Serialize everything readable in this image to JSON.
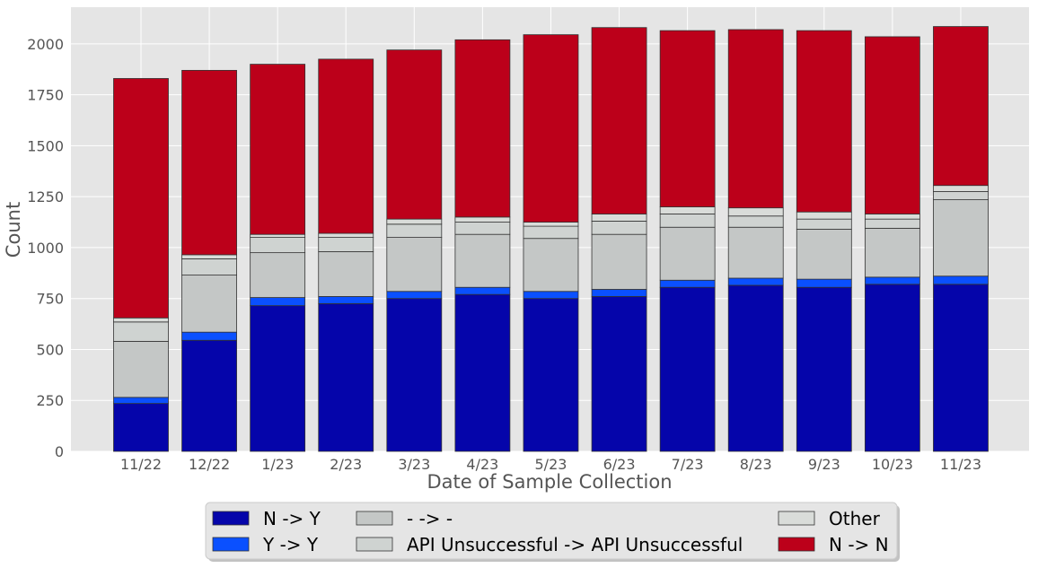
{
  "chart_data": {
    "type": "bar",
    "stacked": true,
    "title": "",
    "xlabel": "Date of Sample Collection",
    "ylabel": "Count",
    "ylim": [
      0,
      2180
    ],
    "yticks": [
      0,
      250,
      500,
      750,
      1000,
      1250,
      1500,
      1750,
      2000
    ],
    "grid": true,
    "legend_position": "bottom-center",
    "categories": [
      "11/22",
      "12/22",
      "1/23",
      "2/23",
      "3/23",
      "4/23",
      "5/23",
      "6/23",
      "7/23",
      "8/23",
      "9/23",
      "10/23",
      "11/23"
    ],
    "series": [
      {
        "name": "N -> Y",
        "color": "#0505aa",
        "values": [
          235,
          545,
          715,
          725,
          750,
          770,
          750,
          760,
          805,
          815,
          805,
          820,
          820
        ]
      },
      {
        "name": "Y -> Y",
        "color": "#0a50ff",
        "values": [
          30,
          40,
          40,
          35,
          35,
          35,
          35,
          35,
          35,
          35,
          40,
          35,
          40
        ]
      },
      {
        "name": "- -> -",
        "color": "#c4c7c6",
        "values": [
          275,
          280,
          220,
          220,
          265,
          260,
          260,
          270,
          260,
          250,
          245,
          240,
          375
        ]
      },
      {
        "name": "API Unsuccessful -> API Unsuccessful",
        "color": "#cfd3d1",
        "values": [
          95,
          80,
          75,
          70,
          65,
          60,
          60,
          65,
          65,
          55,
          50,
          45,
          40
        ]
      },
      {
        "name": "Other",
        "color": "#d9dcd9",
        "values": [
          20,
          20,
          15,
          20,
          25,
          25,
          20,
          35,
          35,
          40,
          35,
          25,
          30
        ]
      },
      {
        "name": "N -> N",
        "color": "#bc001a",
        "values": [
          1175,
          905,
          835,
          855,
          830,
          870,
          920,
          915,
          865,
          875,
          890,
          870,
          780
        ]
      }
    ]
  },
  "legend": {
    "columns": [
      [
        "N -> Y",
        "Y -> Y"
      ],
      [
        "- -> -",
        "API Unsuccessful -> API Unsuccessful"
      ],
      [
        "Other",
        "N -> N"
      ]
    ]
  }
}
